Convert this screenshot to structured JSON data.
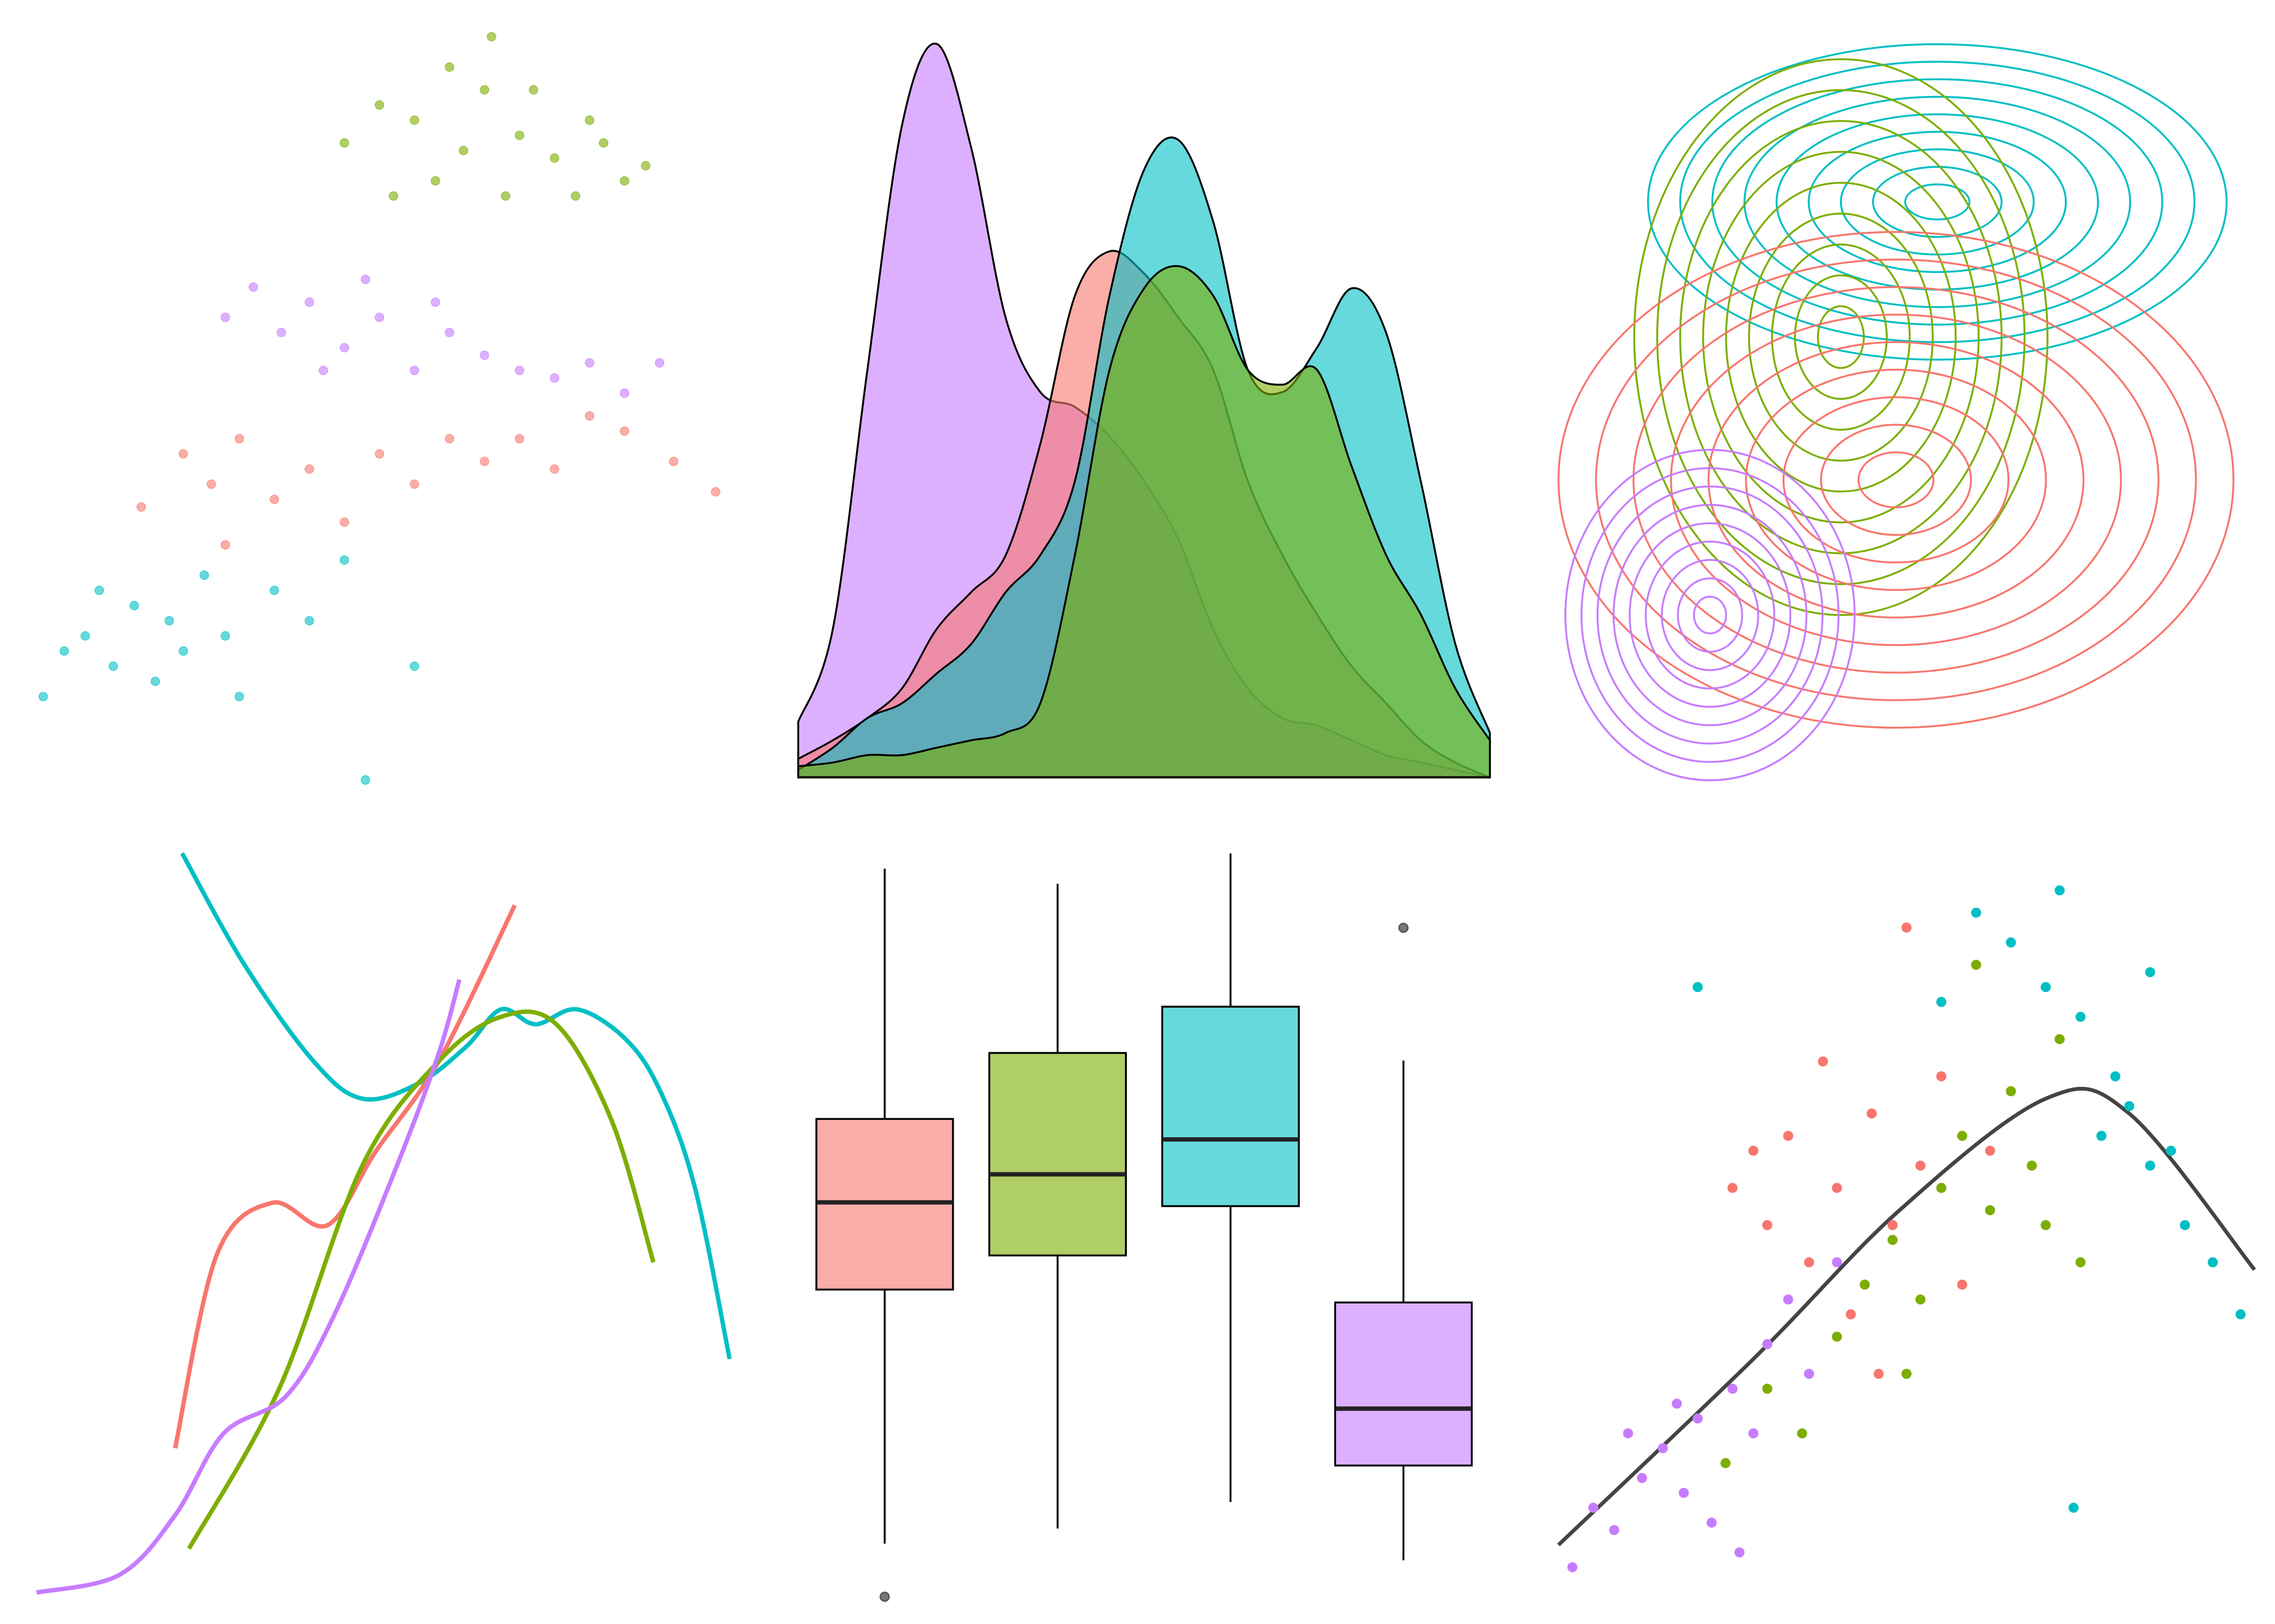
{
  "chart_data": [
    {
      "type": "scatter",
      "xlim": [
        0,
        100
      ],
      "ylim": [
        0,
        100
      ],
      "opacity": 0.6,
      "radius": 3,
      "series": [
        {
          "color": "#7CAE00",
          "x": [
            45,
            50,
            55,
            60,
            65,
            70,
            75,
            80,
            85,
            88,
            58,
            68,
            78,
            62,
            72,
            52,
            82,
            66
          ],
          "y": [
            85,
            90,
            88,
            95,
            92,
            86,
            83,
            88,
            80,
            82,
            80,
            78,
            78,
            84,
            92,
            78,
            85,
            99
          ]
        },
        {
          "color": "#C77CFF",
          "x": [
            28,
            32,
            36,
            40,
            45,
            50,
            55,
            60,
            65,
            70,
            75,
            80,
            85,
            90,
            42,
            48,
            58
          ],
          "y": [
            62,
            66,
            60,
            64,
            58,
            62,
            55,
            60,
            57,
            55,
            54,
            56,
            52,
            56,
            55,
            67,
            64
          ]
        },
        {
          "color": "#F8766D",
          "x": [
            16,
            22,
            26,
            30,
            35,
            40,
            45,
            50,
            55,
            60,
            65,
            70,
            75,
            80,
            85,
            92,
            98,
            28
          ],
          "y": [
            37,
            44,
            40,
            46,
            38,
            42,
            35,
            44,
            40,
            46,
            43,
            46,
            42,
            49,
            47,
            43,
            39,
            32
          ]
        },
        {
          "color": "#00BFC4",
          "x": [
            2,
            5,
            8,
            12,
            15,
            18,
            20,
            22,
            25,
            28,
            30,
            35,
            40,
            45,
            55,
            48,
            10
          ],
          "y": [
            12,
            18,
            20,
            16,
            24,
            14,
            22,
            18,
            28,
            20,
            12,
            26,
            22,
            30,
            16,
            1,
            26
          ]
        }
      ]
    },
    {
      "type": "area",
      "xlim": [
        0,
        100
      ],
      "ylim": [
        0,
        100
      ],
      "opacity": 0.6,
      "x": [
        0,
        5,
        10,
        15,
        20,
        25,
        30,
        35,
        40,
        45,
        50,
        55,
        60,
        65,
        70,
        75,
        80,
        85,
        90,
        95,
        100
      ],
      "series": [
        {
          "color": "#C77CFF",
          "values": [
            7.5,
            20,
            55,
            88,
            99,
            85,
            62,
            52,
            50,
            46,
            40,
            32,
            20,
            12,
            8,
            7,
            5,
            3,
            2,
            1,
            0
          ]
        },
        {
          "color": "#F8766D",
          "values": [
            2.5,
            5,
            8,
            12,
            20,
            25,
            30,
            45,
            65,
            71,
            68,
            62,
            55,
            40,
            30,
            22,
            15,
            10,
            5,
            2,
            0
          ]
        },
        {
          "color": "#00BFC4",
          "values": [
            1,
            4,
            8,
            10,
            14,
            18,
            25,
            30,
            40,
            65,
            82,
            86,
            75,
            55,
            52,
            58,
            66,
            60,
            40,
            18,
            6
          ]
        },
        {
          "color": "#7CAE00",
          "values": [
            1.5,
            2,
            3,
            3,
            4,
            5,
            6,
            10,
            30,
            55,
            66,
            69,
            65,
            55,
            53,
            55,
            42,
            30,
            22,
            12,
            5
          ]
        }
      ]
    },
    {
      "type": "contour",
      "xlim": [
        0,
        100
      ],
      "ylim": [
        0,
        100
      ],
      "levels": 9,
      "series": [
        {
          "color": "#00BFC4",
          "x": 55,
          "y": 77,
          "rx": 42,
          "ry": 21
        },
        {
          "color": "#7CAE00",
          "x": 41,
          "y": 59,
          "rx": 30,
          "ry": 37
        },
        {
          "color": "#F8766D",
          "x": 49,
          "y": 40,
          "rx": 49,
          "ry": 33
        },
        {
          "color": "#C77CFF",
          "x": 22,
          "y": 22,
          "rx": 21,
          "ry": 22
        }
      ]
    },
    {
      "type": "line",
      "xlim": [
        0,
        100
      ],
      "ylim": [
        0,
        100
      ],
      "series": [
        {
          "color": "#00BFC4",
          "x": [
            21,
            30,
            40,
            47,
            55,
            62,
            67,
            72,
            78,
            85,
            90,
            95,
            100
          ],
          "y": [
            100,
            85,
            72,
            67,
            69,
            74,
            79,
            77,
            79,
            75,
            68,
            55,
            32
          ]
        },
        {
          "color": "#F8766D",
          "x": [
            20,
            26,
            34,
            42,
            49,
            58,
            69
          ],
          "y": [
            20,
            46,
            53,
            50,
            60,
            72,
            93
          ]
        },
        {
          "color": "#7CAE00",
          "x": [
            22,
            35,
            47,
            58,
            67,
            75,
            83,
            89
          ],
          "y": [
            6.5,
            28,
            58,
            72,
            78,
            77,
            64,
            45
          ]
        },
        {
          "color": "#C77CFF",
          "x": [
            0,
            12,
            20,
            27,
            36,
            43,
            52,
            58,
            61
          ],
          "y": [
            0.6,
            3,
            11,
            22,
            27,
            38,
            58,
            73,
            83
          ]
        }
      ]
    },
    {
      "type": "box",
      "ylim": [
        0,
        100
      ],
      "opacity": 0.6,
      "series": [
        {
          "color": "#F8766D",
          "whisker_high": 97,
          "q3": 64,
          "median": 53,
          "q1": 41.5,
          "whisker_low": 8,
          "outliers": [
            1
          ]
        },
        {
          "color": "#7CAE00",
          "whisker_high": 95,
          "q3": 72.7,
          "median": 56.7,
          "q1": 46,
          "whisker_low": 10,
          "outliers": []
        },
        {
          "color": "#00BFC4",
          "whisker_high": 99,
          "q3": 78.8,
          "median": 61.3,
          "q1": 52.5,
          "whisker_low": 13.5,
          "outliers": []
        },
        {
          "color": "#C77CFF",
          "whisker_high": 71.7,
          "q3": 39.8,
          "median": 25.8,
          "q1": 18.3,
          "whisker_low": 5.8,
          "outliers": [
            89.2
          ]
        }
      ]
    },
    {
      "type": "scatter",
      "xlim": [
        0,
        100
      ],
      "ylim": [
        0,
        100
      ],
      "opacity": 1,
      "radius": 3.2,
      "series": [
        {
          "color": "#C77CFF",
          "x": [
            2,
            5,
            8,
            12,
            15,
            18,
            20,
            22,
            25,
            28,
            30,
            33,
            36,
            40,
            26,
            17,
            10
          ],
          "y": [
            4,
            12,
            9,
            16,
            20,
            14,
            24,
            10,
            28,
            22,
            34,
            40,
            30,
            45,
            6,
            26,
            22
          ]
        },
        {
          "color": "#F8766D",
          "x": [
            25,
            28,
            30,
            33,
            36,
            40,
            42,
            45,
            48,
            52,
            55,
            58,
            50,
            62,
            38,
            46
          ],
          "y": [
            55,
            60,
            50,
            62,
            45,
            55,
            38,
            65,
            50,
            58,
            70,
            42,
            90,
            60,
            72,
            30
          ]
        },
        {
          "color": "#7CAE00",
          "x": [
            24,
            30,
            35,
            40,
            44,
            48,
            52,
            55,
            58,
            62,
            65,
            68,
            70,
            72,
            60,
            50,
            75
          ],
          "y": [
            18,
            28,
            22,
            35,
            42,
            48,
            40,
            55,
            62,
            52,
            68,
            58,
            50,
            75,
            85,
            30,
            45
          ]
        },
        {
          "color": "#00BFC4",
          "x": [
            20,
            55,
            60,
            65,
            70,
            72,
            75,
            78,
            80,
            82,
            85,
            88,
            90,
            94,
            98,
            85,
            74
          ],
          "y": [
            82,
            80,
            92,
            88,
            82,
            95,
            78,
            62,
            70,
            66,
            84,
            60,
            50,
            45,
            38,
            58,
            12
          ]
        }
      ],
      "fit": {
        "color": "#444444",
        "x": [
          0,
          28,
          49,
          70,
          82,
          100
        ],
        "y": [
          7,
          32,
          52,
          67,
          65,
          44
        ]
      }
    }
  ]
}
